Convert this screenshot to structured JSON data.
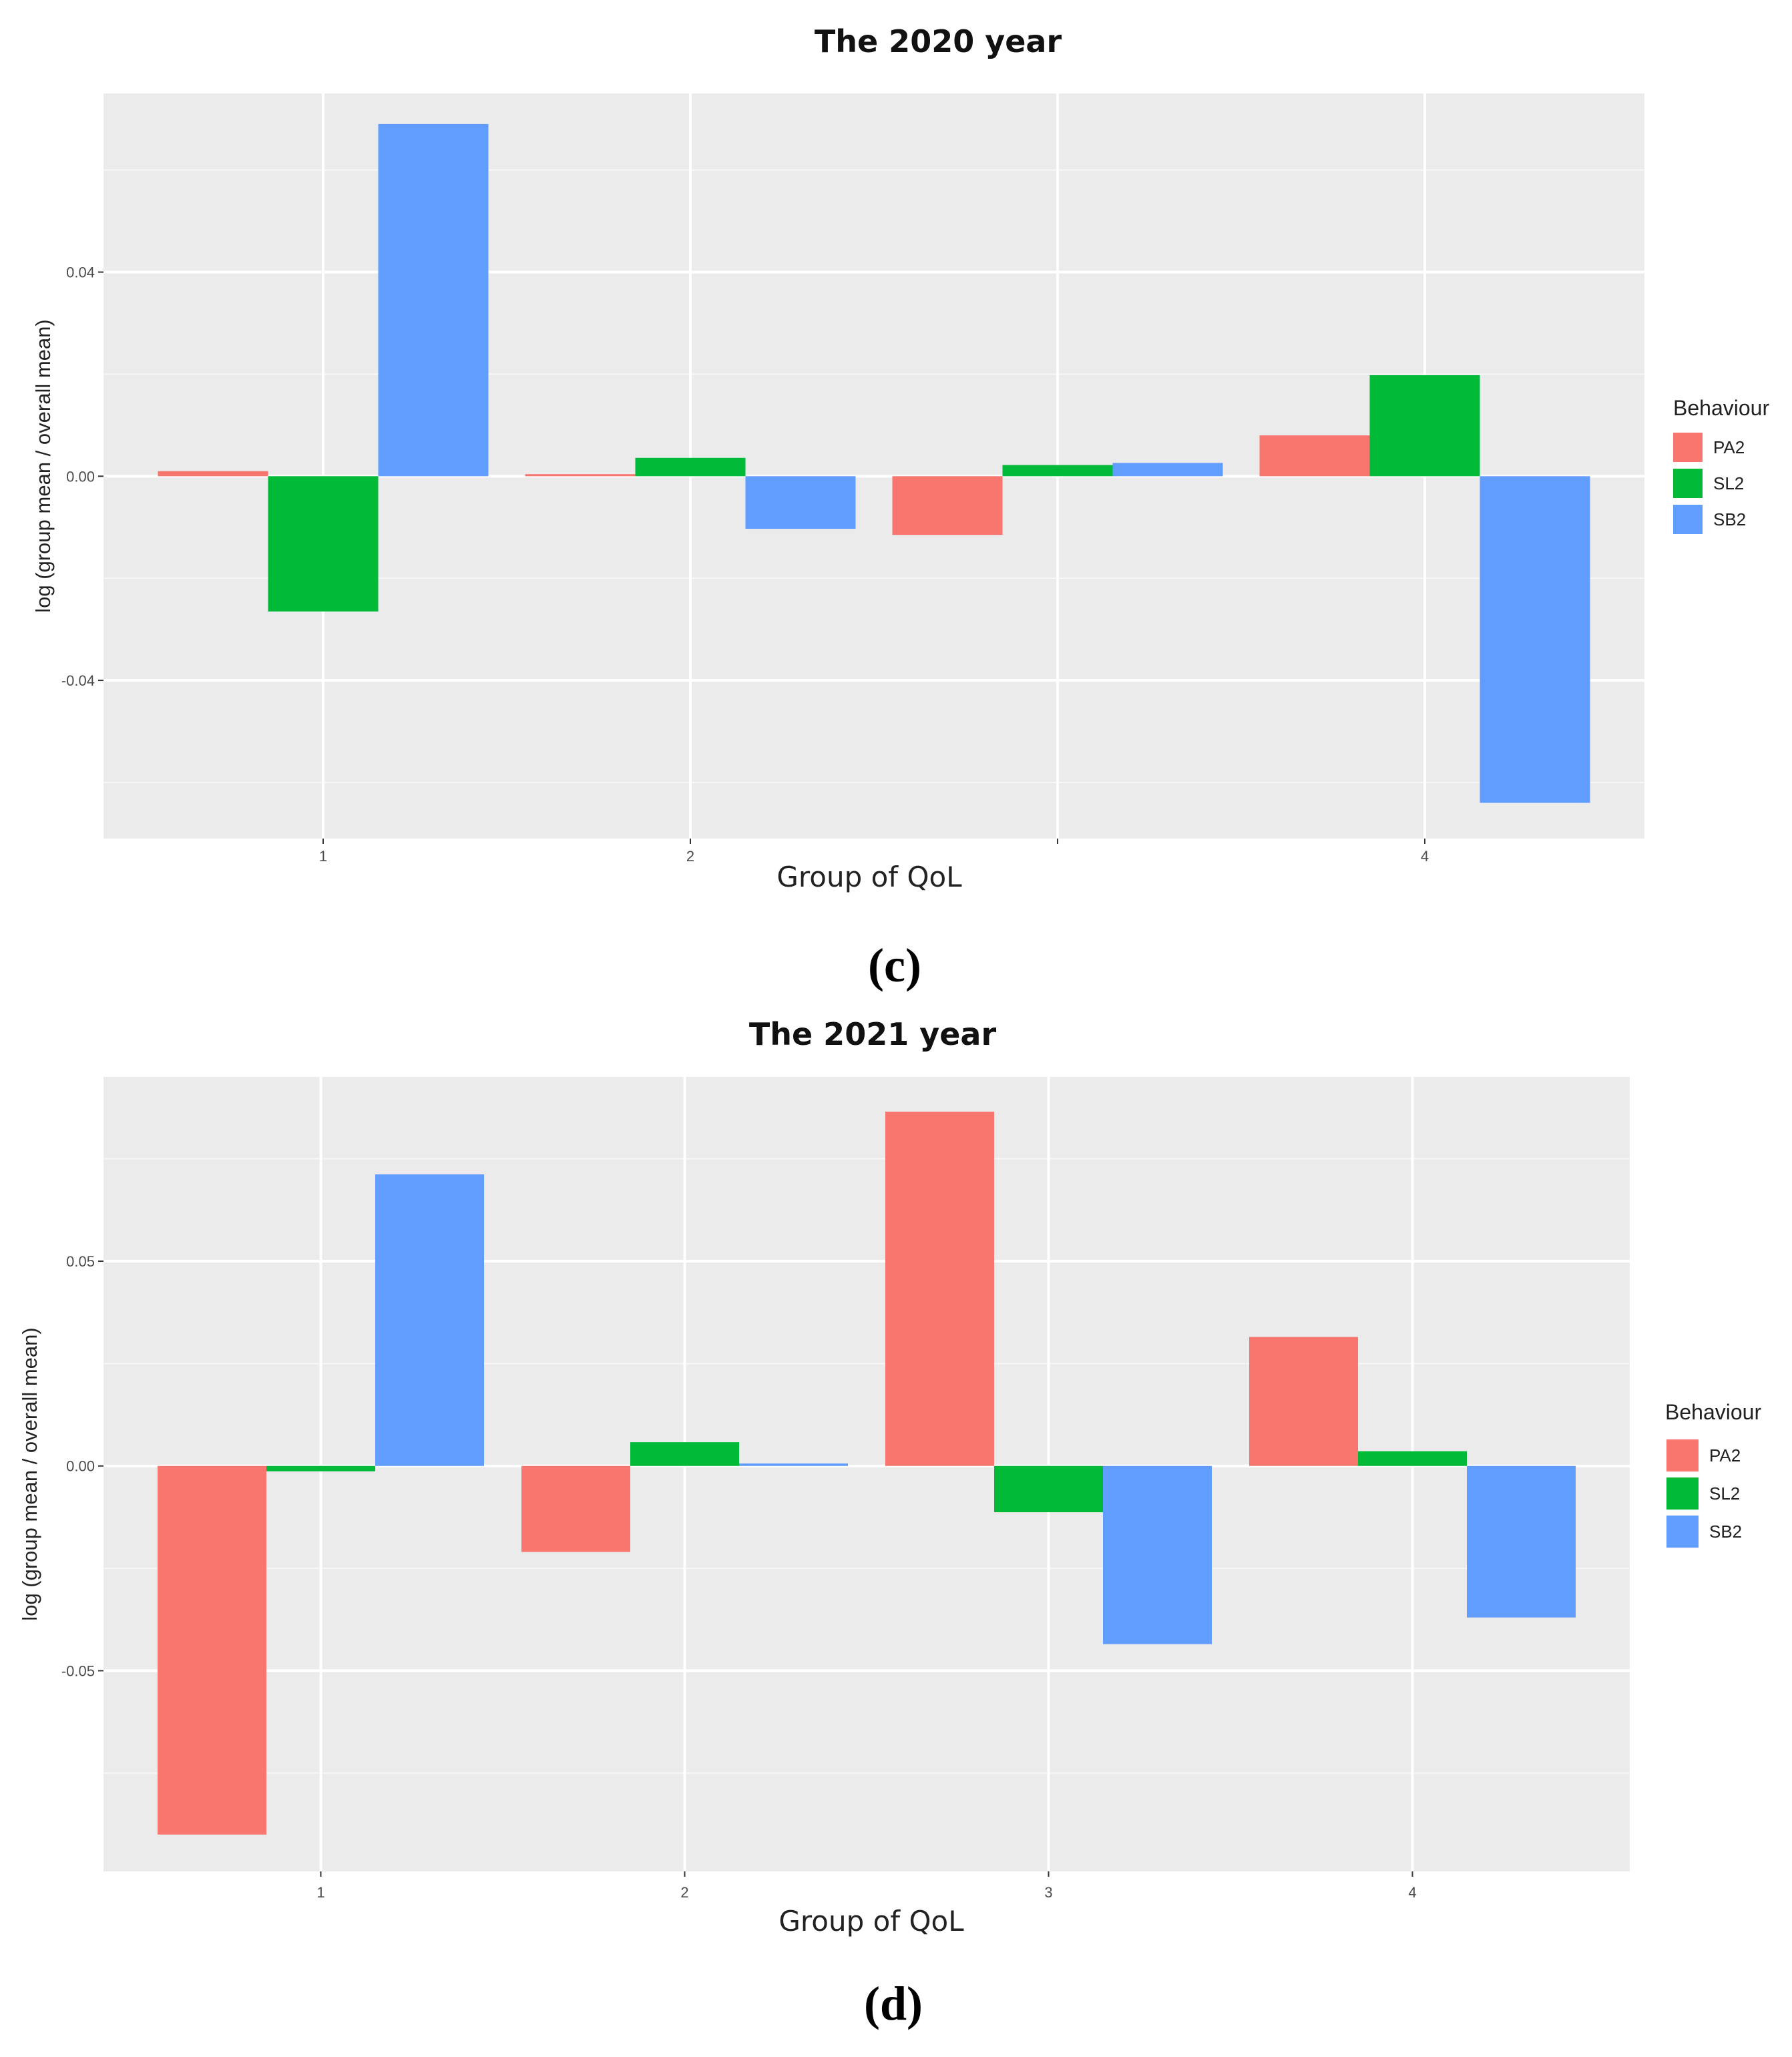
{
  "chart_data": [
    {
      "type": "bar",
      "title": "The 2020 year",
      "xlabel": "Group of QoL",
      "ylabel": "log (group mean / overall mean)",
      "categories": [
        "1",
        "2",
        "",
        "4"
      ],
      "ylim": [
        -0.071,
        0.075
      ],
      "yticks": [
        -0.04,
        0.0,
        0.04
      ],
      "ytick_labels": [
        "-0.04",
        "0.00",
        "0.04"
      ],
      "grid": true,
      "legend": {
        "title": "Behaviour",
        "position": "right"
      },
      "series": [
        {
          "name": "PA2",
          "color": "#F8766D",
          "values": [
            0.001,
            0.0004,
            -0.0115,
            0.008
          ]
        },
        {
          "name": "SL2",
          "color": "#00BA38",
          "values": [
            -0.0265,
            0.0036,
            0.0022,
            0.0198
          ]
        },
        {
          "name": "SB2",
          "color": "#619CFF",
          "values": [
            0.069,
            -0.0103,
            0.0026,
            -0.064
          ]
        }
      ],
      "caption": "(c)"
    },
    {
      "type": "bar",
      "title": "The 2021 year",
      "xlabel": "Group of QoL",
      "ylabel": "log (group mean / overall mean)",
      "categories": [
        "1",
        "2",
        "3",
        "4"
      ],
      "ylim": [
        -0.099,
        0.095
      ],
      "yticks": [
        -0.05,
        0.0,
        0.05
      ],
      "ytick_labels": [
        "-0.05",
        "0.00",
        "0.05"
      ],
      "grid": true,
      "legend": {
        "title": "Behaviour",
        "position": "right"
      },
      "series": [
        {
          "name": "PA2",
          "color": "#F8766D",
          "values": [
            -0.09,
            -0.021,
            0.0865,
            0.0315
          ]
        },
        {
          "name": "SL2",
          "color": "#00BA38",
          "values": [
            -0.0013,
            0.0058,
            -0.0113,
            0.0036
          ]
        },
        {
          "name": "SB2",
          "color": "#619CFF",
          "values": [
            0.0712,
            0.0006,
            -0.0435,
            -0.037
          ]
        }
      ],
      "caption": "(d)"
    }
  ]
}
